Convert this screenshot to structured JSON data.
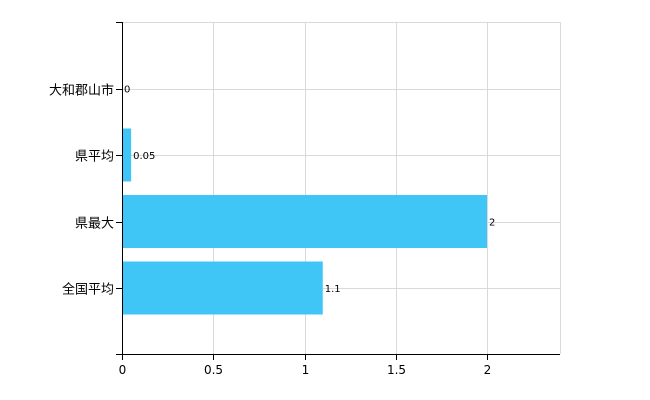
{
  "chart_data": {
    "type": "bar",
    "orientation": "horizontal",
    "categories": [
      "大和郡山市",
      "県平均",
      "県最大",
      "全国平均"
    ],
    "values": [
      0,
      0.05,
      2,
      1.1
    ],
    "value_labels": [
      "0",
      "0.05",
      "2",
      "1.1"
    ],
    "x_ticks": [
      0,
      0.5,
      1,
      1.5,
      2
    ],
    "x_tick_labels": [
      "0",
      "0.5",
      "1",
      "1.5",
      "2"
    ],
    "xlim": [
      0,
      2.4
    ],
    "grid": true,
    "bar_color": "#3fc6f7",
    "grid_color": "#d9d9d9"
  }
}
